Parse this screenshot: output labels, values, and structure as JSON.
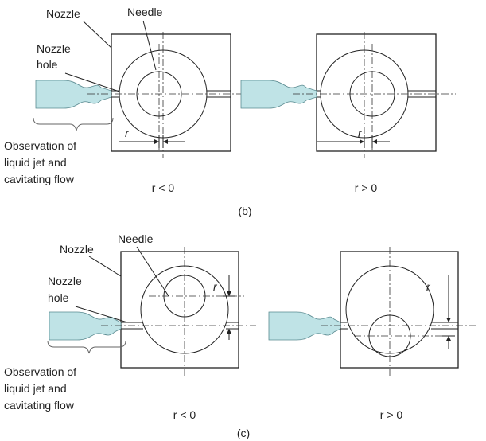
{
  "panels": [
    {
      "label": "(b)",
      "annotations": {
        "nozzle": "Nozzle",
        "needle": "Needle",
        "nozzle_hole": [
          "Nozzle",
          "hole"
        ],
        "observation": [
          "Observation of",
          "liquid jet and",
          "cavitating flow"
        ]
      },
      "cases": [
        {
          "offset_symbol": "r",
          "condition": "r < 0"
        },
        {
          "offset_symbol": "r",
          "condition": "r > 0"
        }
      ]
    },
    {
      "label": "(c)",
      "annotations": {
        "nozzle": "Nozzle",
        "needle": "Needle",
        "nozzle_hole": [
          "Nozzle",
          "hole"
        ],
        "observation": [
          "Observation of",
          "liquid jet and",
          "cavitating flow"
        ]
      },
      "cases": [
        {
          "offset_symbol": "r",
          "condition": "r < 0"
        },
        {
          "offset_symbol": "r",
          "condition": "r > 0"
        }
      ]
    }
  ]
}
